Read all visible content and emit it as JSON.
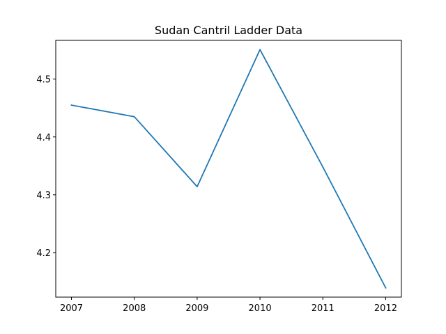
{
  "chart_data": {
    "type": "line",
    "title": "Sudan Cantril Ladder Data",
    "xlabel": "",
    "ylabel": "",
    "x": [
      2007,
      2008,
      2009,
      2010,
      2011,
      2012
    ],
    "series": [
      {
        "values": [
          4.455,
          4.435,
          4.314,
          4.551,
          4.348,
          4.139
        ],
        "color": "#1f77b4"
      }
    ],
    "xlim": [
      2006.75,
      2012.25
    ],
    "ylim": [
      4.123,
      4.567
    ],
    "x_ticks": [
      "2007",
      "2008",
      "2009",
      "2010",
      "2011",
      "2012"
    ],
    "y_ticks": [
      "4.2",
      "4.3",
      "4.4",
      "4.5"
    ],
    "grid": false,
    "legend": "none"
  }
}
